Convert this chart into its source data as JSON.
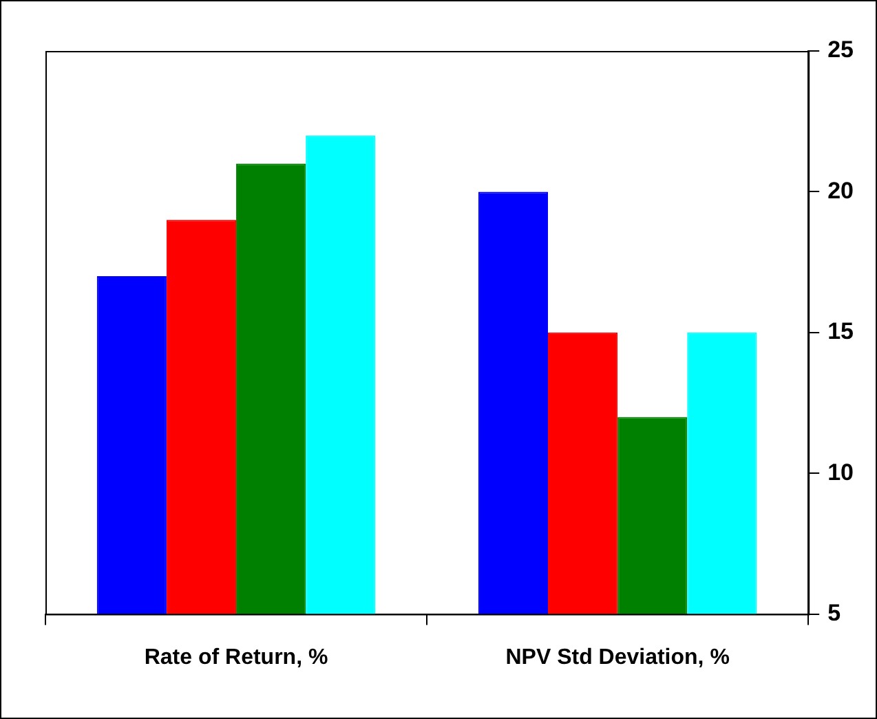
{
  "chart_data": {
    "type": "bar",
    "categories": [
      "Rate of Return, %",
      "NPV Std Deviation, %"
    ],
    "series": [
      {
        "color": "#0000ff",
        "values": [
          17,
          20
        ]
      },
      {
        "color": "#ff0000",
        "values": [
          19,
          15
        ]
      },
      {
        "color": "#008000",
        "values": [
          21,
          12
        ]
      },
      {
        "color": "#00ffff",
        "values": [
          22,
          15
        ]
      }
    ],
    "ylim": [
      5,
      25
    ],
    "yticks": [
      5,
      10,
      15,
      20,
      25
    ],
    "grid": false,
    "legend": false
  }
}
